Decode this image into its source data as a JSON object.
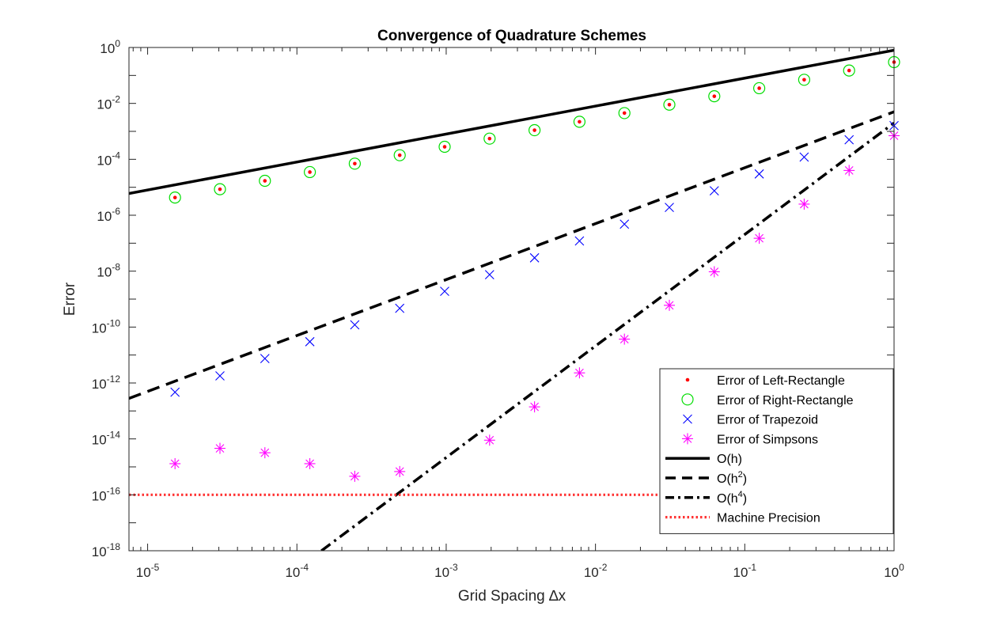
{
  "chart_data": {
    "type": "scatter",
    "title": "Convergence of Quadrature Schemes",
    "xlabel": "Grid Spacing ∆x",
    "ylabel": "Error",
    "xscale": "log",
    "yscale": "log",
    "xlim": [
      7.5e-06,
      1
    ],
    "ylim": [
      1e-18,
      1
    ],
    "grid": false,
    "legend_position": "bottom-right",
    "x_ticks": [
      {
        "value": 1e-05,
        "base": "10",
        "exp": "-5"
      },
      {
        "value": 0.0001,
        "base": "10",
        "exp": "-4"
      },
      {
        "value": 0.001,
        "base": "10",
        "exp": "-3"
      },
      {
        "value": 0.01,
        "base": "10",
        "exp": "-2"
      },
      {
        "value": 0.1,
        "base": "10",
        "exp": "-1"
      },
      {
        "value": 1,
        "base": "10",
        "exp": "0"
      }
    ],
    "y_ticks": [
      {
        "value": 1,
        "base": "10",
        "exp": "0"
      },
      {
        "value": 0.01,
        "base": "10",
        "exp": "-2"
      },
      {
        "value": 0.0001,
        "base": "10",
        "exp": "-4"
      },
      {
        "value": 1e-06,
        "base": "10",
        "exp": "-6"
      },
      {
        "value": 1e-08,
        "base": "10",
        "exp": "-8"
      },
      {
        "value": 1e-10,
        "base": "10",
        "exp": "-10"
      },
      {
        "value": 1e-12,
        "base": "10",
        "exp": "-12"
      },
      {
        "value": 1e-14,
        "base": "10",
        "exp": "-14"
      },
      {
        "value": 1e-16,
        "base": "10",
        "exp": "-16"
      },
      {
        "value": 1e-18,
        "base": "10",
        "exp": "-18"
      }
    ],
    "x": [
      1,
      0.5,
      0.25,
      0.125,
      0.0625,
      0.03125,
      0.015625,
      0.0078125,
      0.00390625,
      0.001953125,
      0.0009765625,
      0.00048828125,
      0.000244140625,
      0.0001220703125,
      6.103515625e-05,
      3.0517578125e-05,
      1.52587890625e-05
    ],
    "series": [
      {
        "name": "Error of Left-Rectangle",
        "marker": "dot",
        "color": "#ff0000",
        "values": [
          0.3,
          0.15,
          0.07,
          0.035,
          0.018,
          0.009,
          0.0045,
          0.0022,
          0.0011,
          0.00055,
          0.00028,
          0.00014,
          7e-05,
          3.5e-05,
          1.7e-05,
          8.5e-06,
          4.3e-06
        ]
      },
      {
        "name": "Error of Right-Rectangle",
        "marker": "circle",
        "color": "#00dd00",
        "values": [
          0.3,
          0.15,
          0.07,
          0.035,
          0.018,
          0.009,
          0.0045,
          0.0022,
          0.0011,
          0.00055,
          0.00028,
          0.00014,
          7e-05,
          3.5e-05,
          1.7e-05,
          8.5e-06,
          4.3e-06
        ]
      },
      {
        "name": "Error of Trapezoid",
        "marker": "x",
        "color": "#0000ff",
        "values": [
          0.0016,
          0.0005,
          0.00012,
          3e-05,
          7.5e-06,
          1.9e-06,
          4.8e-07,
          1.2e-07,
          3e-08,
          7.5e-09,
          1.9e-09,
          4.7e-10,
          1.2e-10,
          3e-11,
          7.5e-12,
          1.8e-12,
          4.7e-13
        ]
      },
      {
        "name": "Error of Simpsons",
        "marker": "asterisk",
        "color": "#ff00ff",
        "values": [
          0.0007,
          4e-05,
          2.5e-06,
          1.5e-07,
          9.5e-09,
          6e-10,
          3.7e-11,
          2.3e-12,
          1.4e-13,
          9e-15,
          null,
          6.8e-16,
          4.6e-16,
          1.3e-15,
          3.2e-15,
          4.6e-15,
          1.3e-15
        ]
      }
    ],
    "reference_lines": [
      {
        "name": "O(h)",
        "name_base": "O(h",
        "name_sup": "",
        "name_tail": ")",
        "style": "solid",
        "color": "#000000",
        "points": [
          [
            7.5e-06,
            6e-06
          ],
          [
            1,
            0.8
          ]
        ]
      },
      {
        "name": "O(h2)",
        "name_base": "O(h",
        "name_sup": "2",
        "name_tail": ")",
        "style": "dashed",
        "color": "#000000",
        "points": [
          [
            7.5e-06,
            2.8e-13
          ],
          [
            1,
            0.005
          ]
        ]
      },
      {
        "name": "O(h4)",
        "name_base": "O(h",
        "name_sup": "4",
        "name_tail": ")",
        "style": "dashdot",
        "color": "#000000",
        "points": [
          [
            0.000146,
            1e-18
          ],
          [
            1,
            0.002
          ]
        ]
      },
      {
        "name": "Machine Precision",
        "name_base": "Machine Precision",
        "name_sup": "",
        "name_tail": "",
        "style": "dotted",
        "color": "#ff3333",
        "points": [
          [
            7.5e-06,
            1e-16
          ],
          [
            1,
            1e-16
          ]
        ]
      }
    ]
  }
}
